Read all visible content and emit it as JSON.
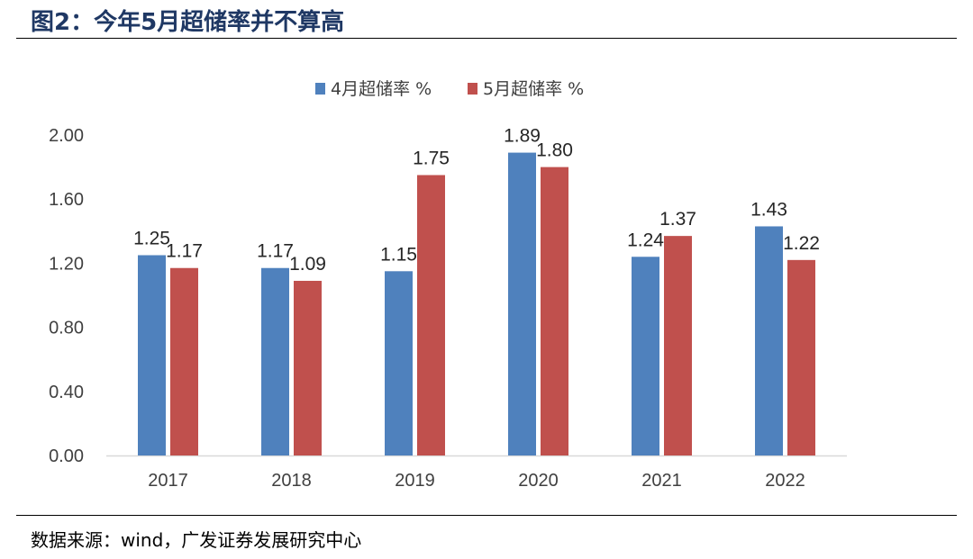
{
  "figure": {
    "title": "图2：今年5月超储率并不算高",
    "source": "数据来源：wind，广发证券发展研究中心"
  },
  "chart_data": {
    "type": "bar",
    "title": "",
    "xlabel": "",
    "ylabel": "",
    "categories": [
      "2017",
      "2018",
      "2019",
      "2020",
      "2021",
      "2022"
    ],
    "series": [
      {
        "name": "4月超储率 %",
        "values": [
          1.25,
          1.17,
          1.15,
          1.89,
          1.24,
          1.43
        ],
        "color": "#4f81bd"
      },
      {
        "name": "5月超储率 %",
        "values": [
          1.17,
          1.09,
          1.75,
          1.8,
          1.37,
          1.22
        ],
        "color": "#c0504d"
      }
    ],
    "ylim": [
      0,
      2.0
    ],
    "yticks": [
      "0.00",
      "0.40",
      "0.80",
      "1.20",
      "1.60",
      "2.00"
    ],
    "grid": false,
    "legend_position": "top-center",
    "data_labels": true
  }
}
